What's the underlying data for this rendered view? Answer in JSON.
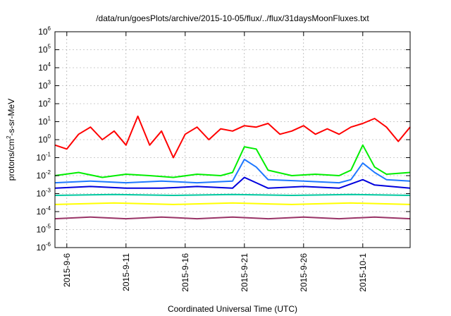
{
  "chart_data": {
    "type": "line",
    "title": "/data/run/goesPlots/archive/2015-10-05/flux/../flux/31daysMoonFluxes.txt",
    "xlabel": "Coordinated Universal Time (UTC)",
    "ylabel_base": "protons/cm",
    "ylabel_sup": "2",
    "ylabel_tail": "-s-sr-MeV",
    "y_scale": "log",
    "ylim": [
      1e-06,
      1000000.0
    ],
    "grid": true,
    "legend": "none",
    "x_range_days": [
      "2015-09-05",
      "2015-10-05"
    ],
    "x_ticks": [
      {
        "date": "2015-09-06",
        "label": "2015-9-6"
      },
      {
        "date": "2015-09-11",
        "label": "2015-9-11"
      },
      {
        "date": "2015-09-16",
        "label": "2015-9-16"
      },
      {
        "date": "2015-09-21",
        "label": "2015-9-21"
      },
      {
        "date": "2015-09-26",
        "label": "2015-9-26"
      },
      {
        "date": "2015-10-01",
        "label": "2015-10-1"
      }
    ],
    "y_ticks": [
      {
        "value": 1e-06,
        "base": "10",
        "exp": "-6"
      },
      {
        "value": 1e-05,
        "base": "10",
        "exp": "-5"
      },
      {
        "value": 0.0001,
        "base": "10",
        "exp": "-4"
      },
      {
        "value": 0.001,
        "base": "10",
        "exp": "-3"
      },
      {
        "value": 0.01,
        "base": "10",
        "exp": "-2"
      },
      {
        "value": 0.1,
        "base": "10",
        "exp": "-1"
      },
      {
        "value": 1.0,
        "base": "10",
        "exp": "0"
      },
      {
        "value": 10.0,
        "base": "10",
        "exp": "1"
      },
      {
        "value": 100.0,
        "base": "10",
        "exp": "2"
      },
      {
        "value": 1000.0,
        "base": "10",
        "exp": "3"
      },
      {
        "value": 10000.0,
        "base": "10",
        "exp": "4"
      },
      {
        "value": 100000.0,
        "base": "10",
        "exp": "5"
      },
      {
        "value": 1000000.0,
        "base": "10",
        "exp": "6"
      }
    ],
    "series": [
      {
        "color": "#ff0000",
        "x": [
          "2015-09-05",
          "2015-09-06",
          "2015-09-07",
          "2015-09-08",
          "2015-09-09",
          "2015-09-10",
          "2015-09-11",
          "2015-09-12",
          "2015-09-13",
          "2015-09-14",
          "2015-09-15",
          "2015-09-16",
          "2015-09-17",
          "2015-09-18",
          "2015-09-19",
          "2015-09-20",
          "2015-09-21",
          "2015-09-22",
          "2015-09-23",
          "2015-09-24",
          "2015-09-25",
          "2015-09-26",
          "2015-09-27",
          "2015-09-28",
          "2015-09-29",
          "2015-09-30",
          "2015-10-01",
          "2015-10-02",
          "2015-10-03",
          "2015-10-04",
          "2015-10-05"
        ],
        "values": [
          0.5,
          0.3,
          2,
          5,
          1,
          3,
          0.5,
          20,
          0.5,
          3,
          0.1,
          2,
          5,
          1,
          4,
          3,
          6,
          5,
          8,
          2,
          3,
          6,
          2,
          4,
          2,
          5,
          8,
          15,
          5,
          0.8,
          5
        ]
      },
      {
        "color": "#00ee00",
        "x": [
          "2015-09-05",
          "2015-09-07",
          "2015-09-09",
          "2015-09-11",
          "2015-09-13",
          "2015-09-15",
          "2015-09-17",
          "2015-09-19",
          "2015-09-20",
          "2015-09-21",
          "2015-09-22",
          "2015-09-23",
          "2015-09-25",
          "2015-09-27",
          "2015-09-29",
          "2015-09-30",
          "2015-10-01",
          "2015-10-02",
          "2015-10-03",
          "2015-10-05"
        ],
        "values": [
          0.01,
          0.015,
          0.008,
          0.012,
          0.01,
          0.008,
          0.012,
          0.01,
          0.015,
          0.4,
          0.3,
          0.02,
          0.01,
          0.012,
          0.01,
          0.02,
          0.5,
          0.03,
          0.012,
          0.015
        ]
      },
      {
        "color": "#1e78ff",
        "x": [
          "2015-09-05",
          "2015-09-08",
          "2015-09-11",
          "2015-09-14",
          "2015-09-17",
          "2015-09-20",
          "2015-09-21",
          "2015-09-22",
          "2015-09-23",
          "2015-09-26",
          "2015-09-29",
          "2015-09-30",
          "2015-10-01",
          "2015-10-02",
          "2015-10-03",
          "2015-10-05"
        ],
        "values": [
          0.004,
          0.005,
          0.004,
          0.005,
          0.004,
          0.005,
          0.08,
          0.03,
          0.006,
          0.005,
          0.004,
          0.006,
          0.05,
          0.015,
          0.006,
          0.005
        ]
      },
      {
        "color": "#0000dd",
        "x": [
          "2015-09-05",
          "2015-09-08",
          "2015-09-11",
          "2015-09-14",
          "2015-09-17",
          "2015-09-20",
          "2015-09-21",
          "2015-09-22",
          "2015-09-23",
          "2015-09-26",
          "2015-09-29",
          "2015-10-01",
          "2015-10-02",
          "2015-10-05"
        ],
        "values": [
          0.002,
          0.0025,
          0.002,
          0.002,
          0.0025,
          0.002,
          0.008,
          0.004,
          0.002,
          0.0025,
          0.002,
          0.006,
          0.003,
          0.002
        ]
      },
      {
        "color": "#00c8a0",
        "x": [
          "2015-09-05",
          "2015-09-10",
          "2015-09-15",
          "2015-09-20",
          "2015-09-25",
          "2015-09-30",
          "2015-10-05"
        ],
        "values": [
          0.0008,
          0.0009,
          0.0008,
          0.0009,
          0.0008,
          0.0009,
          0.0008
        ]
      },
      {
        "color": "#ffff00",
        "x": [
          "2015-09-05",
          "2015-09-10",
          "2015-09-15",
          "2015-09-20",
          "2015-09-25",
          "2015-09-30",
          "2015-10-05"
        ],
        "values": [
          0.00025,
          0.0003,
          0.00025,
          0.0003,
          0.00025,
          0.0003,
          0.00025
        ]
      },
      {
        "color": "#993366",
        "x": [
          "2015-09-05",
          "2015-09-08",
          "2015-09-11",
          "2015-09-14",
          "2015-09-17",
          "2015-09-20",
          "2015-09-23",
          "2015-09-26",
          "2015-09-29",
          "2015-10-02",
          "2015-10-05"
        ],
        "values": [
          4e-05,
          5e-05,
          4e-05,
          5e-05,
          4e-05,
          5e-05,
          4e-05,
          5e-05,
          4e-05,
          5e-05,
          4e-05
        ]
      }
    ]
  }
}
